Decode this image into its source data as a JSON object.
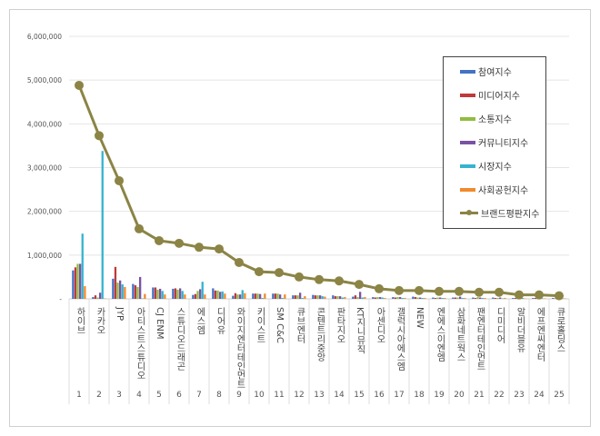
{
  "chart_data": {
    "type": "bar+line",
    "categories": [
      "하이브",
      "카카오",
      "JYP",
      "아티스트스튜디오",
      "CJ ENM",
      "스튜디오드래곤",
      "에스엠",
      "디어유",
      "와이지엔터테인먼트",
      "키이스트",
      "SM C&C",
      "큐브엔터",
      "콘텐트리중앙",
      "판타지오",
      "KT지니뮤직",
      "아센디오",
      "갤럭시아에스엠",
      "NEW",
      "엔에스이엔엠",
      "삼화네트웍스",
      "팬엔터테인먼트",
      "디미디어",
      "알비더블유",
      "에프엔씨엔터",
      "큐로홀딩스"
    ],
    "ranks": [
      "1",
      "2",
      "3",
      "4",
      "5",
      "6",
      "7",
      "8",
      "9",
      "10",
      "11",
      "12",
      "13",
      "14",
      "15",
      "16",
      "17",
      "18",
      "19",
      "20",
      "21",
      "22",
      "23",
      "24",
      "25"
    ],
    "yticks": [
      "-",
      "1,000,000",
      "2,000,000",
      "3,000,000",
      "4,000,000",
      "5,000,000",
      "6,000,000"
    ],
    "ylim": [
      0,
      6000000
    ],
    "grid": true,
    "legend_position": "right",
    "series": [
      {
        "name": "참여지수",
        "type": "bar",
        "color": "#4472c4",
        "values": [
          650000,
          40000,
          460000,
          340000,
          260000,
          230000,
          90000,
          240000,
          70000,
          120000,
          120000,
          80000,
          90000,
          80000,
          50000,
          40000,
          40000,
          50000,
          30000,
          30000,
          30000,
          30000,
          20000,
          20000,
          20000
        ]
      },
      {
        "name": "미디어지수",
        "type": "bar",
        "color": "#c0393b",
        "values": [
          720000,
          80000,
          730000,
          310000,
          260000,
          240000,
          110000,
          190000,
          130000,
          120000,
          120000,
          80000,
          80000,
          60000,
          80000,
          30000,
          30000,
          40000,
          20000,
          30000,
          20000,
          20000,
          20000,
          20000,
          10000
        ]
      },
      {
        "name": "소통지수",
        "type": "bar",
        "color": "#8fbc3f",
        "values": [
          800000,
          30000,
          370000,
          270000,
          210000,
          210000,
          180000,
          190000,
          100000,
          120000,
          120000,
          80000,
          80000,
          60000,
          40000,
          40000,
          40000,
          30000,
          30000,
          30000,
          40000,
          20000,
          20000,
          20000,
          10000
        ]
      },
      {
        "name": "커뮤니티지수",
        "type": "bar",
        "color": "#7a52a4",
        "values": [
          800000,
          140000,
          420000,
          500000,
          230000,
          240000,
          220000,
          160000,
          100000,
          110000,
          100000,
          140000,
          80000,
          60000,
          160000,
          40000,
          40000,
          30000,
          30000,
          50000,
          30000,
          30000,
          20000,
          30000,
          10000
        ]
      },
      {
        "name": "시장지수",
        "type": "bar",
        "color": "#35b3cf",
        "values": [
          1490000,
          3380000,
          330000,
          10000,
          180000,
          180000,
          390000,
          170000,
          200000,
          20000,
          20000,
          20000,
          60000,
          30000,
          30000,
          30000,
          20000,
          20000,
          20000,
          20000,
          20000,
          10000,
          20000,
          10000,
          10000
        ]
      },
      {
        "name": "사회공헌지수",
        "type": "bar",
        "color": "#f08a2c",
        "values": [
          290000,
          10000,
          270000,
          110000,
          100000,
          100000,
          100000,
          120000,
          130000,
          120000,
          100000,
          60000,
          50000,
          40000,
          40000,
          20000,
          20000,
          20000,
          20000,
          20000,
          20000,
          20000,
          10000,
          10000,
          10000
        ]
      },
      {
        "name": "브랜드평판지수",
        "type": "line",
        "color": "#8b8445",
        "values": [
          4880000,
          3730000,
          2700000,
          1600000,
          1330000,
          1270000,
          1180000,
          1140000,
          830000,
          620000,
          600000,
          500000,
          440000,
          410000,
          330000,
          230000,
          190000,
          190000,
          170000,
          170000,
          150000,
          150000,
          90000,
          90000,
          70000
        ]
      }
    ]
  }
}
